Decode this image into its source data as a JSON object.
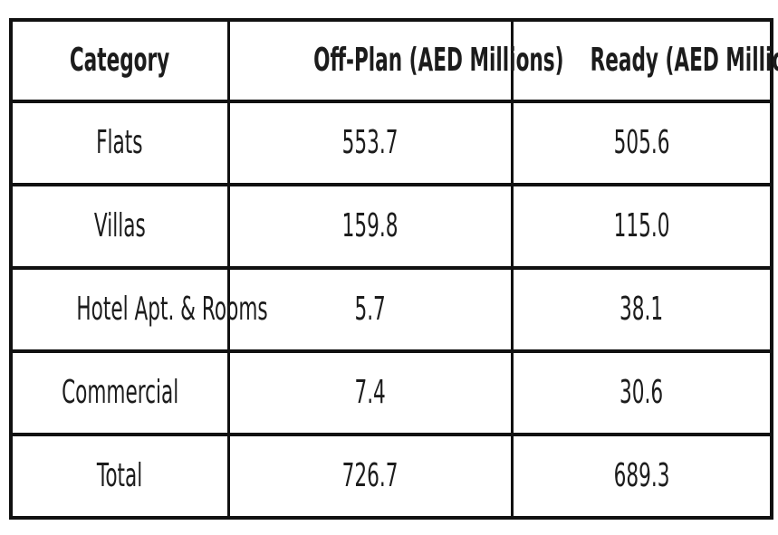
{
  "colors": {
    "bg": "#ffffff",
    "border": "#111111",
    "text": "#1c1c1c"
  },
  "table": {
    "header": [
      "Category",
      "Off-Plan (AED Millions)",
      "Ready (AED Millions)"
    ],
    "rows": [
      [
        "Flats",
        "553.7",
        "505.6"
      ],
      [
        "Villas",
        "159.8",
        "115.0"
      ],
      [
        "Hotel Apt. & Rooms",
        "5.7",
        "38.1"
      ],
      [
        "Commercial",
        "7.4",
        "30.6"
      ],
      [
        "Total",
        "726.7",
        "689.3"
      ]
    ]
  },
  "chart_data": {
    "type": "table",
    "title": "",
    "columns": [
      "Category",
      "Off-Plan (AED Millions)",
      "Ready (AED Millions)"
    ],
    "rows": [
      [
        "Flats",
        553.7,
        505.6
      ],
      [
        "Villas",
        159.8,
        115.0
      ],
      [
        "Hotel Apt. & Rooms",
        5.7,
        38.1
      ],
      [
        "Commercial",
        7.4,
        30.6
      ],
      [
        "Total",
        726.7,
        689.3
      ]
    ],
    "units": "AED Millions"
  }
}
